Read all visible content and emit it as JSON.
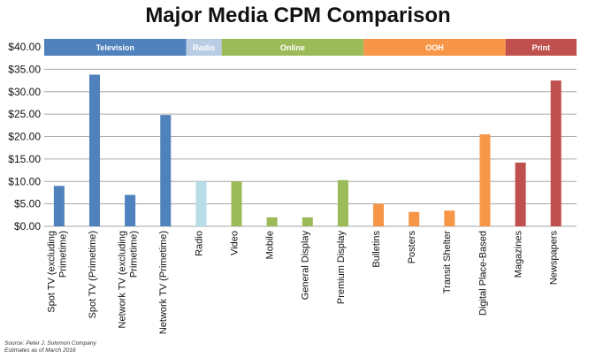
{
  "source_note": {
    "line1": "Source: Peter J. Solomon Company",
    "line2": "Estimates as of March 2016"
  },
  "chart_data": {
    "type": "bar",
    "title": "Major Media CPM Comparison",
    "ylim": [
      0,
      40
    ],
    "yticks": [
      "$0.00",
      "$5.00",
      "$10.00",
      "$15.00",
      "$20.00",
      "$25.00",
      "$30.00",
      "$35.00",
      "$40.00"
    ],
    "grid": true,
    "categories": [
      [
        "Spot TV (excluding",
        "Primetime)"
      ],
      [
        "Spot TV (Primetime)"
      ],
      [
        "Network TV (excluding",
        "Primetime)"
      ],
      [
        "Network TV (Primetime)"
      ],
      [
        "Radio"
      ],
      [
        "Video"
      ],
      [
        "Mobile"
      ],
      [
        "General Display"
      ],
      [
        "Premium Display"
      ],
      [
        "Bulletins"
      ],
      [
        "Posters"
      ],
      [
        "Transit Shelter"
      ],
      [
        "Digital Place-Based"
      ],
      [
        "Magazines"
      ],
      [
        "Newspapers"
      ]
    ],
    "values": [
      9.0,
      33.8,
      7.0,
      24.8,
      10.0,
      10.0,
      2.0,
      2.0,
      10.3,
      5.0,
      3.2,
      3.5,
      20.5,
      14.2,
      32.5
    ],
    "groups": [
      {
        "name": "Television",
        "start": 0,
        "end": 3,
        "color": "#4f81bd"
      },
      {
        "name": "Radio",
        "start": 4,
        "end": 4,
        "color": "#b8cce4"
      },
      {
        "name": "Online",
        "start": 5,
        "end": 8,
        "color": "#9bbb59"
      },
      {
        "name": "OOH",
        "start": 9,
        "end": 12,
        "color": "#f79646"
      },
      {
        "name": "Print",
        "start": 13,
        "end": 14,
        "color": "#c0504d"
      }
    ],
    "bar_colors": [
      "#4f81bd",
      "#4f81bd",
      "#4f81bd",
      "#4f81bd",
      "#b7dde8",
      "#9bbb59",
      "#9bbb59",
      "#9bbb59",
      "#9bbb59",
      "#f79646",
      "#f79646",
      "#f79646",
      "#f79646",
      "#c0504d",
      "#c0504d"
    ]
  }
}
